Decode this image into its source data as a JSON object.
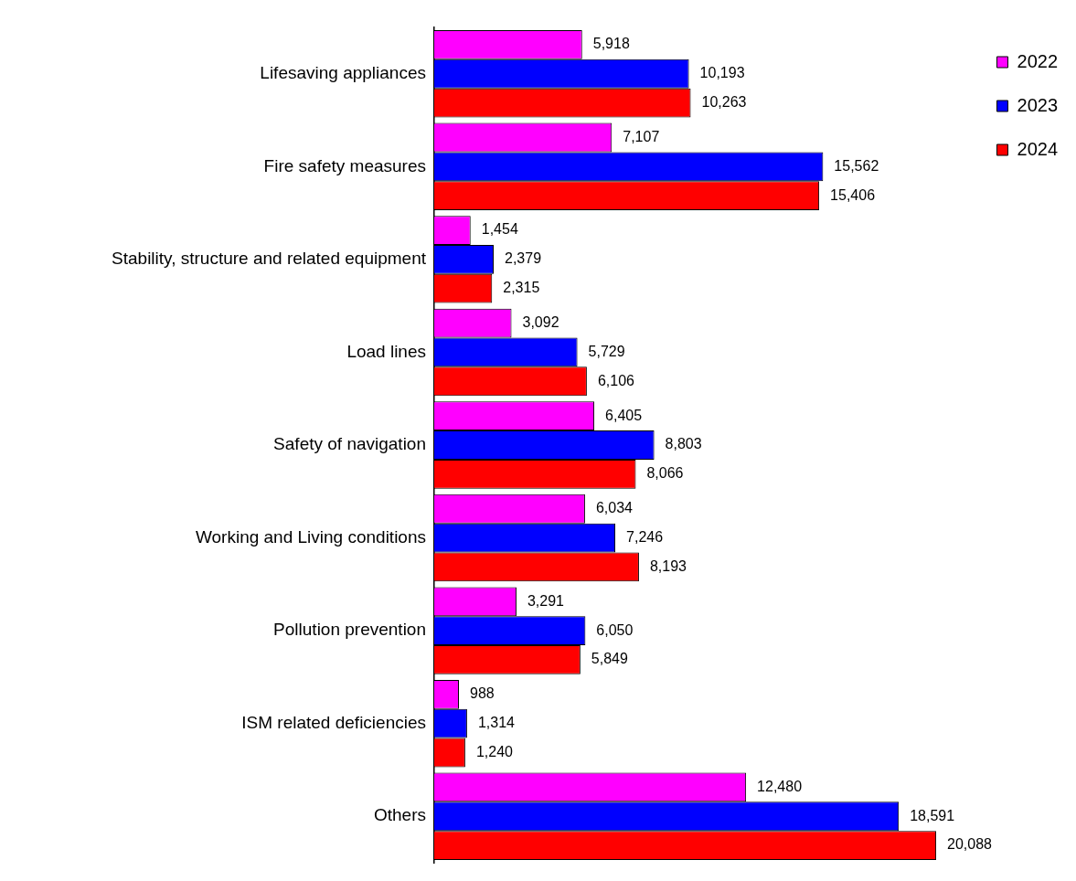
{
  "chart_data": {
    "type": "bar",
    "orientation": "horizontal",
    "categories": [
      "Lifesaving appliances",
      "Fire safety measures",
      "Stability, structure and related equipment",
      "Load lines",
      "Safety of navigation",
      "Working and Living conditions",
      "Pollution prevention",
      "ISM related deficiencies",
      "Others"
    ],
    "series": [
      {
        "name": "2022",
        "color": "#ff00ff",
        "values": [
          5918,
          7107,
          1454,
          3092,
          6405,
          6034,
          3291,
          988,
          12480
        ],
        "value_labels": [
          "5,918",
          "7,107",
          "1,454",
          "3,092",
          "6,405",
          "6,034",
          "3,291",
          "988",
          "12,480"
        ]
      },
      {
        "name": "2023",
        "color": "#0000ff",
        "values": [
          10193,
          15562,
          2379,
          5729,
          8803,
          7246,
          6050,
          1314,
          18591
        ],
        "value_labels": [
          "10,193",
          "15,562",
          "2,379",
          "5,729",
          "8,803",
          "7,246",
          "6,050",
          "1,314",
          "18,591"
        ]
      },
      {
        "name": "2024",
        "color": "#ff0000",
        "values": [
          10263,
          15406,
          2315,
          6106,
          8066,
          8193,
          5849,
          1240,
          20088
        ],
        "value_labels": [
          "10,263",
          "15,406",
          "2,315",
          "6,106",
          "8,066",
          "8,193",
          "5,849",
          "1,240",
          "20,088"
        ]
      }
    ],
    "legend": "top right",
    "tick_labels": "y"
  }
}
